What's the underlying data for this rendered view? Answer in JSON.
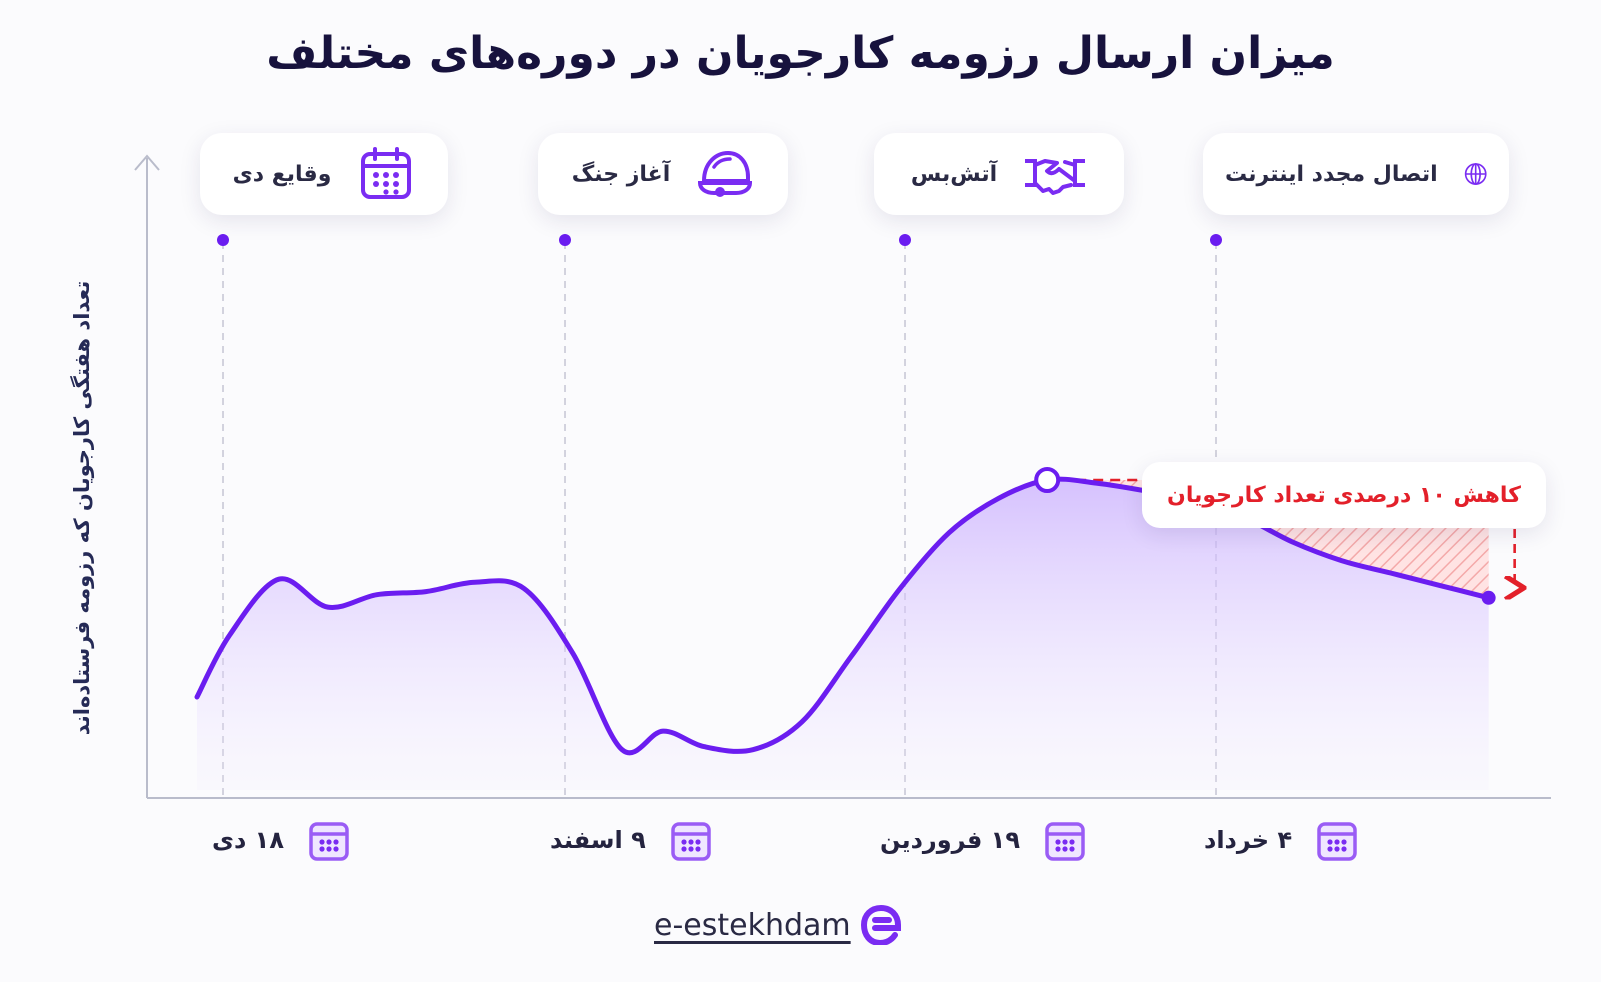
{
  "chart_data": {
    "type": "area",
    "title": "میزان ارسال رزومه کارجویان در دوره‌های مختلف",
    "ylabel": "تعداد هفتگی کارجویان که رزومه فرستاده‌اند",
    "xlabel": "",
    "grid": false,
    "x_ticks": [
      "۱۸ دی",
      "۹ اسفند",
      "۱۹ فروردین",
      "۴ خرداد"
    ],
    "events": [
      {
        "label": "وقایع دی",
        "icon": "calendar-icon"
      },
      {
        "label": "آغاز جنگ",
        "icon": "helmet-icon"
      },
      {
        "label": "آتش‌بس",
        "icon": "handshake-icon"
      },
      {
        "label": "اتصال مجدد اینترنت",
        "icon": "globe-icon"
      }
    ],
    "series": [
      {
        "x": [
          0,
          2,
          5,
          8,
          11,
          14,
          17,
          20,
          23,
          26,
          28.5,
          31,
          34,
          37,
          40,
          43,
          46,
          49,
          52,
          55,
          58.5,
          61,
          64,
          67,
          70,
          73,
          76,
          79
        ],
        "values": [
          30,
          50,
          68,
          59,
          63,
          64,
          67,
          65,
          44,
          13,
          19,
          14,
          13,
          22,
          43,
          65,
          83,
          94,
          100,
          99,
          96,
          93,
          88,
          80,
          74,
          70,
          66,
          62
        ]
      }
    ],
    "ylim": [
      0,
      110
    ],
    "peak_value": 100,
    "end_value": 62,
    "annotation": "کاهش ۱۰ درصدی تعداد کارجویان",
    "annotation_color": "#e3202a",
    "line_color": "#6b1df0",
    "fill_color": "#cdb5ff"
  },
  "brand": {
    "text": "e-estekhdam",
    "logo": "e-logo-icon",
    "color": "#7a2cf2"
  }
}
